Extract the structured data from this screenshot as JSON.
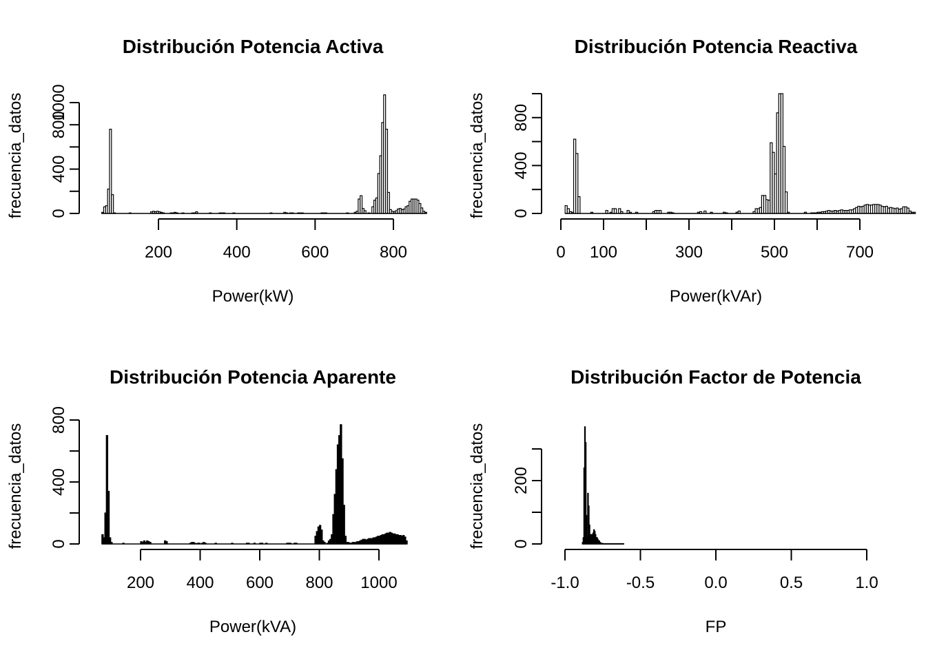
{
  "chart_data": [
    {
      "type": "bar",
      "title": "Distribución Potencia Activa",
      "xlabel": "Power(kW)",
      "ylabel": "frecuencia_datos",
      "xticks": [
        200,
        400,
        600,
        800
      ],
      "yticks": [
        0,
        200,
        400,
        600,
        800,
        1000
      ],
      "ytick_labels": [
        "0",
        "",
        "400",
        "",
        "800",
        "1000"
      ],
      "xlim": [
        25,
        830
      ],
      "ylim": [
        0,
        1000
      ],
      "bin_width": 5,
      "x_start": 55,
      "values": [
        10,
        60,
        70,
        220,
        760,
        170,
        5,
        0,
        0,
        0,
        0,
        0,
        0,
        0,
        5,
        0,
        0,
        0,
        0,
        0,
        0,
        0,
        0,
        0,
        0,
        15,
        20,
        15,
        20,
        15,
        10,
        5,
        0,
        0,
        0,
        5,
        5,
        10,
        5,
        0,
        0,
        5,
        0,
        0,
        0,
        0,
        5,
        5,
        15,
        0,
        0,
        0,
        0,
        0,
        0,
        5,
        0,
        0,
        0,
        0,
        5,
        5,
        5,
        0,
        0,
        0,
        0,
        5,
        0,
        0,
        0,
        0,
        0,
        0,
        0,
        0,
        0,
        0,
        0,
        0,
        0,
        0,
        0,
        0,
        0,
        0,
        5,
        0,
        0,
        0,
        0,
        0,
        0,
        10,
        5,
        0,
        5,
        5,
        0,
        0,
        5,
        5,
        5,
        0,
        0,
        0,
        0,
        0,
        0,
        0,
        0,
        0,
        5,
        5,
        5,
        0,
        0,
        0,
        0,
        0,
        0,
        0,
        0,
        0,
        0,
        5,
        0,
        0,
        0,
        10,
        20,
        130,
        160,
        45,
        25,
        0,
        5,
        0,
        60,
        120,
        140,
        360,
        520,
        820,
        1070,
        760,
        190,
        35,
        20,
        15,
        25,
        40,
        45,
        35,
        40,
        60,
        70,
        110,
        130,
        130,
        130,
        120,
        90,
        50,
        20,
        10
      ]
    },
    {
      "type": "bar",
      "title": "Distribución Potencia Reactiva",
      "xlabel": "Power(kVAr)",
      "ylabel": "frecuencia_datos",
      "xticks": [
        0,
        100,
        200,
        300,
        400,
        500,
        600,
        700
      ],
      "xtick_labels": [
        "0",
        "100",
        "",
        "300",
        "",
        "500",
        "",
        "700"
      ],
      "yticks": [
        0,
        200,
        400,
        600,
        800,
        1000
      ],
      "ytick_labels": [
        "0",
        "",
        "400",
        "",
        "800",
        ""
      ],
      "xlim": [
        -20,
        720
      ],
      "ylim": [
        0,
        1000
      ],
      "bin_width": 5,
      "x_start": 10,
      "values": [
        65,
        40,
        15,
        10,
        620,
        500,
        140,
        0,
        0,
        0,
        0,
        0,
        10,
        0,
        0,
        0,
        0,
        0,
        0,
        25,
        0,
        10,
        40,
        40,
        0,
        40,
        15,
        0,
        0,
        25,
        10,
        0,
        0,
        10,
        0,
        0,
        0,
        0,
        0,
        0,
        0,
        15,
        25,
        25,
        25,
        0,
        0,
        0,
        10,
        10,
        5,
        0,
        0,
        0,
        0,
        0,
        0,
        0,
        0,
        0,
        0,
        0,
        10,
        15,
        0,
        20,
        0,
        0,
        10,
        0,
        0,
        0,
        0,
        0,
        10,
        5,
        0,
        0,
        0,
        0,
        10,
        20,
        0,
        0,
        0,
        0,
        0,
        0,
        15,
        40,
        40,
        50,
        150,
        150,
        115,
        110,
        590,
        510,
        330,
        840,
        1000,
        1000,
        560,
        180,
        10,
        0,
        0,
        0,
        0,
        0,
        0,
        0,
        10,
        0,
        0,
        5,
        5,
        5,
        10,
        10,
        15,
        15,
        20,
        25,
        20,
        20,
        25,
        20,
        25,
        30,
        25,
        25,
        25,
        30,
        30,
        40,
        50,
        60,
        55,
        60,
        70,
        75,
        70,
        70,
        75,
        75,
        75,
        70,
        60,
        55,
        60,
        45,
        50,
        45,
        40,
        45,
        35,
        40,
        55,
        55,
        45,
        20,
        10,
        10
      ]
    },
    {
      "type": "bar",
      "title": "Distribución Potencia Aparente",
      "xlabel": "Power(kVA)",
      "ylabel": "frecuencia_datos",
      "xticks": [
        200,
        400,
        600,
        800,
        1000
      ],
      "yticks": [
        0,
        200,
        400,
        600,
        800
      ],
      "ytick_labels": [
        "0",
        "",
        "400",
        "",
        "800"
      ],
      "xlim": [
        -35,
        1085
      ],
      "ylim": [
        0,
        800
      ],
      "bin_width": 5,
      "x_start": 70,
      "values": [
        60,
        40,
        200,
        700,
        340,
        40,
        10,
        0,
        0,
        0,
        0,
        0,
        0,
        0,
        5,
        0,
        0,
        0,
        0,
        0,
        0,
        0,
        0,
        0,
        0,
        0,
        15,
        10,
        20,
        10,
        20,
        15,
        10,
        0,
        0,
        0,
        0,
        0,
        0,
        0,
        0,
        0,
        20,
        15,
        0,
        0,
        0,
        0,
        0,
        0,
        0,
        0,
        0,
        0,
        0,
        0,
        0,
        0,
        0,
        5,
        10,
        10,
        5,
        0,
        5,
        5,
        0,
        5,
        10,
        5,
        0,
        0,
        0,
        0,
        0,
        0,
        5,
        0,
        0,
        0,
        0,
        0,
        0,
        0,
        0,
        0,
        0,
        5,
        0,
        0,
        0,
        0,
        0,
        0,
        0,
        0,
        0,
        5,
        5,
        0,
        0,
        0,
        5,
        0,
        0,
        0,
        5,
        5,
        0,
        0,
        5,
        0,
        0,
        0,
        0,
        0,
        0,
        0,
        0,
        0,
        0,
        0,
        0,
        0,
        5,
        5,
        5,
        0,
        0,
        5,
        5,
        0,
        0,
        0,
        0,
        0,
        0,
        0,
        0,
        0,
        0,
        0,
        0,
        50,
        80,
        110,
        120,
        90,
        20,
        10,
        0,
        5,
        20,
        30,
        60,
        190,
        320,
        480,
        640,
        700,
        770,
        550,
        250,
        50,
        10,
        10,
        5,
        5,
        10,
        10,
        10,
        15,
        15,
        20,
        25,
        30,
        30,
        25,
        30,
        35,
        35,
        35,
        40,
        40,
        45,
        50,
        50,
        55,
        60,
        60,
        65,
        70,
        70,
        75,
        70,
        65,
        65,
        60,
        60,
        55,
        55,
        50,
        55,
        45,
        20
      ]
    },
    {
      "type": "bar",
      "title": "Distribución Factor de Potencia",
      "xlabel": "FP",
      "ylabel": "frecuencia_datos",
      "xticks": [
        -1.0,
        -0.5,
        0.0,
        0.5,
        1.0
      ],
      "xtick_labels": [
        "-1.0",
        "-0.5",
        "0.0",
        "0.5",
        "1.0"
      ],
      "yticks": [
        0,
        100,
        200,
        300
      ],
      "ytick_labels": [
        "0",
        "",
        "200",
        ""
      ],
      "xlim": [
        -1.0,
        1.0
      ],
      "ylim": [
        0,
        300
      ],
      "bin_width": 0.005,
      "x_start": -0.885,
      "values": [
        5,
        20,
        240,
        370,
        320,
        90,
        20,
        160,
        120,
        60,
        25,
        30,
        20,
        30,
        35,
        45,
        40,
        30,
        20,
        20,
        15,
        10,
        10,
        5,
        3,
        2,
        2,
        1,
        1,
        1,
        1,
        1,
        1,
        1,
        1,
        1,
        1,
        1,
        1,
        1,
        1,
        1,
        1,
        1,
        1,
        1,
        1,
        1,
        1,
        1,
        1,
        1,
        1,
        1,
        1
      ]
    }
  ]
}
